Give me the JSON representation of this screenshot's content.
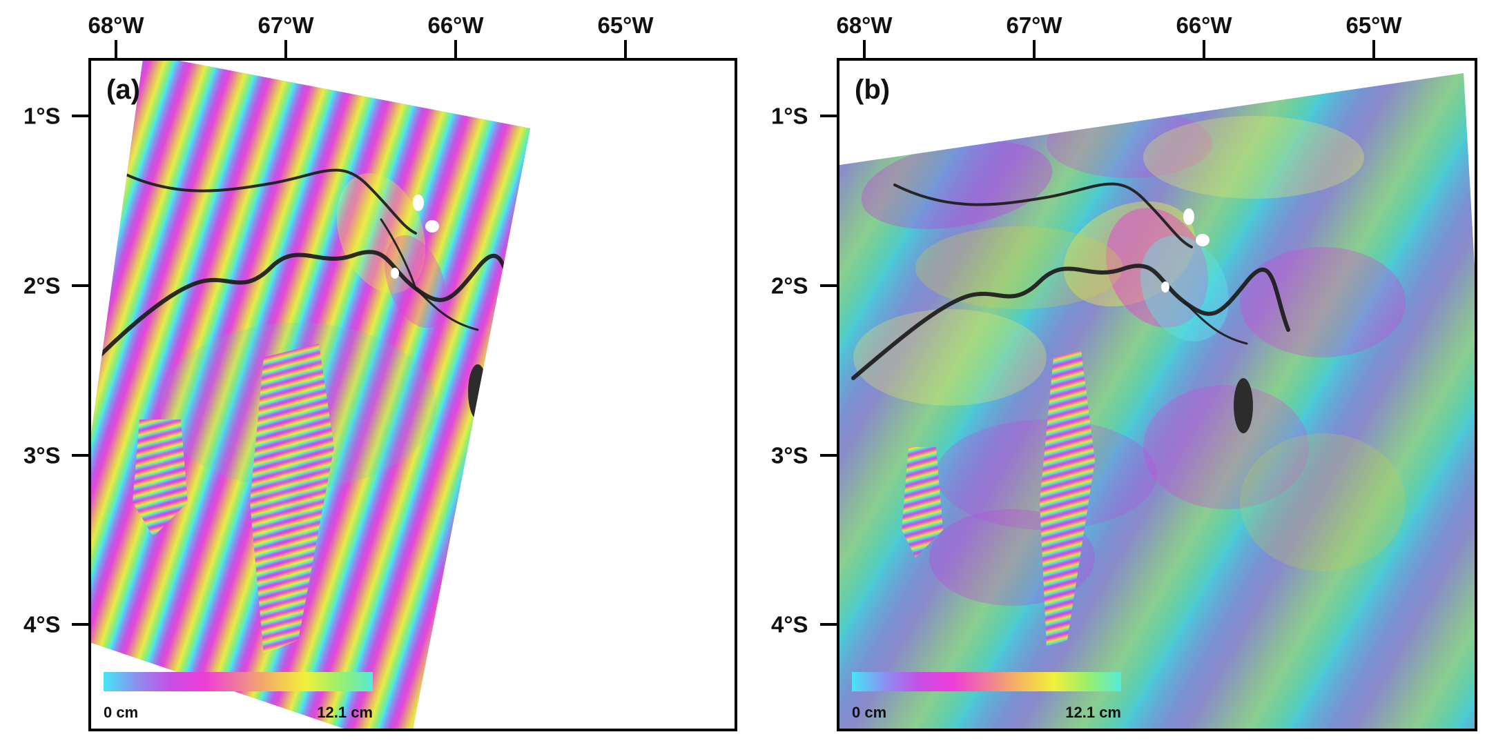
{
  "longitude_labels": [
    "68°W",
    "67°W",
    "66°W",
    "65°W"
  ],
  "latitude_labels": [
    "1°S",
    "2°S",
    "3°S",
    "4°S"
  ],
  "colorbar": {
    "min_label": "0 cm",
    "max_label": "12.1 cm",
    "colors": [
      "#46e6f6",
      "#8d8ef0",
      "#c74ee6",
      "#f03cd7",
      "#f07a9a",
      "#f4b85c",
      "#f1f03b",
      "#9af06a",
      "#52ecd9"
    ]
  },
  "panels": [
    {
      "id": "a",
      "label": "(a)"
    },
    {
      "id": "b",
      "label": "(b)"
    }
  ]
}
